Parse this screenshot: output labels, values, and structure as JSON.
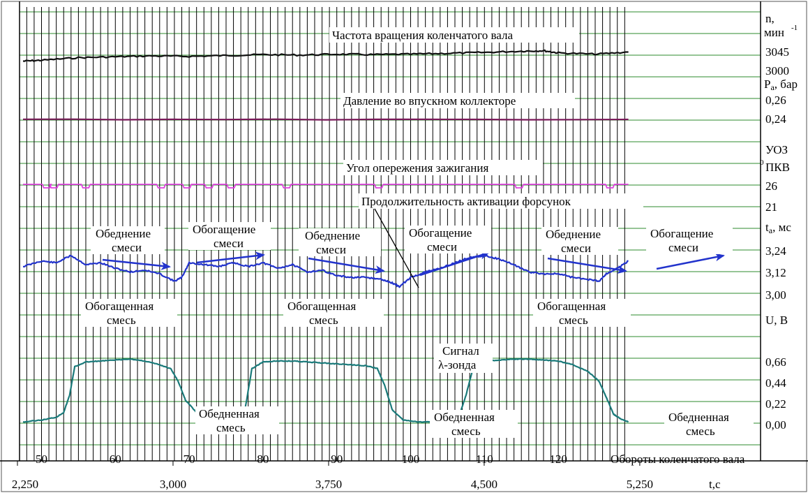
{
  "chart_data": {
    "type": "line",
    "subplots": [
      {
        "title": "Частота вращения коленчатого вала",
        "ylabel_line1": "n,",
        "ylabel_line2": "мин",
        "ylabel_sup": "-1",
        "ticks": [
          "3045",
          "3000"
        ],
        "color": "#000000"
      },
      {
        "title": "Давление во впускном коллекторе",
        "ylabel": "Pa, бар",
        "ticks": [
          "0,26",
          "0,24"
        ],
        "color": "#7a1a5a"
      },
      {
        "title": "Угол опережения зажигания",
        "ylabel_line1": "УОЗ",
        "ylabel_line2": "ПКВ",
        "ylabel_sup": "0",
        "ticks": [
          "26",
          "21"
        ],
        "color": "#e040e0"
      },
      {
        "title": "Продолжительность активации форсунок",
        "ylabel": "tа, мс",
        "ticks": [
          "3,24",
          "3,12",
          "3,00"
        ],
        "color": "#2233cc"
      },
      {
        "ylabel": "U, В",
        "ticks": [
          "0,66",
          "0,44",
          "0,22",
          "0,00"
        ],
        "color": "#1a7a7a"
      }
    ],
    "x_revolutions": {
      "label": "Обороты коленчатого вала",
      "ticks": [
        "50",
        "60",
        "70",
        "80",
        "90",
        "100",
        "110",
        "120"
      ]
    },
    "x_time": {
      "label": "t,c",
      "ticks": [
        "2,250",
        "3,000",
        "3,750",
        "4,500",
        "5,250"
      ]
    },
    "series": {
      "rpm": {
        "x": [
          47.5,
          50,
          55,
          60,
          65,
          70,
          75,
          80,
          85,
          90,
          95,
          100,
          105,
          110,
          115,
          118,
          120,
          125,
          129.5
        ],
        "y": [
          3020,
          3022,
          3028,
          3030,
          3032,
          3031,
          3033,
          3035,
          3034,
          3036,
          3035,
          3036,
          3038,
          3040,
          3043,
          3044,
          3039,
          3036,
          3041
        ]
      },
      "pressure": {
        "x": [
          47.5,
          129.5
        ],
        "y": [
          0.24,
          0.24
        ]
      },
      "ignition_dips_revolutions": [
        50.5,
        51.5,
        55.8,
        66,
        69.5,
        72.5,
        75.5,
        83,
        95.5,
        114.5,
        126.8
      ],
      "injection": {
        "x": [
          47.5,
          50,
          52,
          54,
          56,
          58,
          60,
          62,
          64,
          66,
          68,
          69,
          70,
          72,
          74,
          76,
          78,
          80,
          82,
          84,
          86,
          88,
          90,
          92,
          94,
          96,
          97.5,
          98.5,
          100,
          102,
          104,
          106,
          108,
          110,
          112,
          114,
          116,
          118,
          120,
          122,
          124,
          125.5,
          126.5,
          128,
          129.5
        ],
        "y": [
          3.15,
          3.18,
          3.17,
          3.21,
          3.16,
          3.17,
          3.14,
          3.12,
          3.13,
          3.11,
          3.07,
          3.09,
          3.17,
          3.16,
          3.15,
          3.17,
          3.15,
          3.17,
          3.14,
          3.16,
          3.12,
          3.13,
          3.1,
          3.09,
          3.09,
          3.08,
          3.06,
          3.04,
          3.09,
          3.12,
          3.14,
          3.17,
          3.2,
          3.21,
          3.19,
          3.16,
          3.12,
          3.11,
          3.11,
          3.09,
          3.08,
          3.07,
          3.11,
          3.14,
          3.18
        ]
      },
      "lambda": {
        "x": [
          47.5,
          50,
          52,
          53,
          53.8,
          54.5,
          56,
          58,
          60,
          62,
          64,
          66,
          67.5,
          68.5,
          69.5,
          71,
          73,
          75,
          76.5,
          77.5,
          78.5,
          80,
          82,
          84,
          86,
          88,
          90,
          92,
          94,
          95.5,
          96.5,
          97.5,
          99,
          101,
          103,
          105,
          106.5,
          107.5,
          108.5,
          110,
          112,
          114,
          116,
          118,
          120,
          122,
          124,
          125.5,
          126.5,
          127.5,
          128.5,
          129.5
        ],
        "y": [
          0.02,
          0.04,
          0.07,
          0.12,
          0.3,
          0.6,
          0.65,
          0.66,
          0.67,
          0.68,
          0.66,
          0.62,
          0.58,
          0.45,
          0.25,
          0.12,
          0.05,
          0.04,
          0.05,
          0.12,
          0.58,
          0.65,
          0.66,
          0.66,
          0.65,
          0.64,
          0.63,
          0.62,
          0.61,
          0.58,
          0.4,
          0.15,
          0.04,
          0.02,
          0.02,
          0.03,
          0.07,
          0.3,
          0.6,
          0.66,
          0.67,
          0.68,
          0.68,
          0.67,
          0.66,
          0.62,
          0.55,
          0.45,
          0.28,
          0.1,
          0.05,
          0.02
        ]
      }
    }
  },
  "annotations": {
    "enrichment_mixture_label": [
      "Обогащенная",
      "смесь"
    ],
    "lean_mixture_label": [
      "Обедненная",
      "смесь"
    ],
    "leaning_label": [
      "Обеднение",
      "смеси"
    ],
    "enriching_label": [
      "Обогащение",
      "смеси"
    ],
    "lambda_signal_label": [
      "Сигнал",
      "λ-зонда"
    ]
  },
  "colors": {
    "grid_green": "#2e8b2e",
    "grid_black": "#000000",
    "arrow_blue": "#2233cc"
  }
}
